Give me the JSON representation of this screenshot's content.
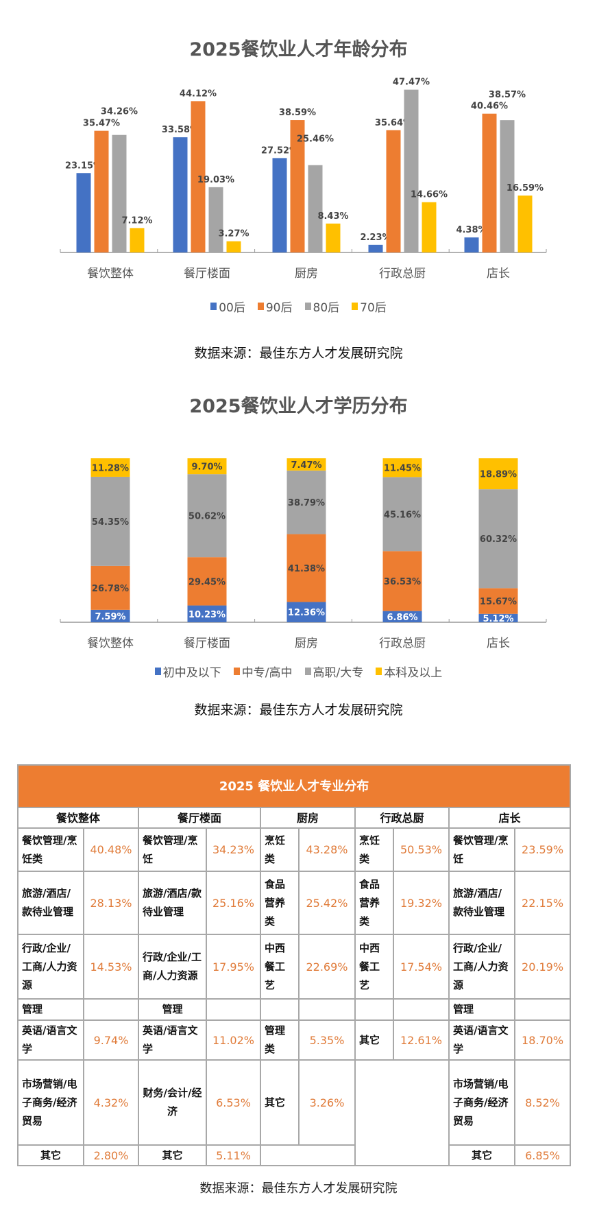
{
  "chart_data": [
    {
      "type": "bar",
      "title": "2025餐饮业人才年龄分布",
      "categories": [
        "餐饮整体",
        "餐厅楼面",
        "厨房",
        "行政总厨",
        "店长"
      ],
      "series": [
        {
          "name": "00后",
          "color": "#4472c4",
          "values": [
            23.15,
            33.58,
            27.52,
            2.23,
            4.38
          ]
        },
        {
          "name": "90后",
          "color": "#ed7d31",
          "values": [
            35.47,
            44.12,
            38.59,
            35.64,
            40.46
          ]
        },
        {
          "name": "80后",
          "color": "#a5a5a5",
          "values": [
            34.26,
            19.03,
            25.46,
            47.47,
            38.57
          ]
        },
        {
          "name": "70后",
          "color": "#ffc000",
          "values": [
            7.12,
            3.27,
            8.43,
            14.66,
            16.59
          ]
        }
      ],
      "value_suffix": "%",
      "legend": "bottom",
      "grid": false
    },
    {
      "type": "bar",
      "stacked": true,
      "title": "2025餐饮业人才学历分布",
      "categories": [
        "餐饮整体",
        "餐厅楼面",
        "厨房",
        "行政总厨",
        "店长"
      ],
      "series": [
        {
          "name": "初中及以下",
          "color": "#4472c4",
          "values": [
            7.59,
            10.23,
            12.36,
            6.86,
            5.12
          ]
        },
        {
          "name": "中专/高中",
          "color": "#ed7d31",
          "values": [
            26.78,
            29.45,
            41.38,
            36.53,
            15.67
          ]
        },
        {
          "name": "高职/大专",
          "color": "#a5a5a5",
          "values": [
            54.35,
            50.62,
            38.79,
            45.16,
            60.32
          ]
        },
        {
          "name": "本科及以上",
          "color": "#ffc000",
          "values": [
            11.28,
            9.7,
            7.47,
            11.45,
            18.89
          ]
        }
      ],
      "value_suffix": "%",
      "legend": "bottom",
      "grid": false
    }
  ],
  "source_text": "数据来源：最佳东方人才发展研究院",
  "table": {
    "title": "2025 餐饮业人才专业分布",
    "columns": [
      "餐饮整体",
      "餐厅楼面",
      "厨房",
      "行政总厨",
      "店长"
    ],
    "cells": {
      "r1": [
        "餐饮管理/烹饪类",
        "40.48%",
        "餐饮管理/烹饪",
        "34.23%",
        "烹饪类",
        "43.28%",
        "烹饪类",
        "50.53%",
        "餐饮管理/烹饪",
        "23.59%"
      ],
      "r2": [
        "旅游/酒店/款待业管理",
        "28.13%",
        "旅游/酒店/款待业管理",
        "25.16%",
        "食品营养类",
        "25.42%",
        "食品营养类",
        "19.32%",
        "旅游/酒店/款待业管理",
        "22.15%"
      ],
      "r3": [
        "行政/企业/工商/人力资源",
        "14.53%",
        "行政/企业/工商/人力资源",
        "17.95%",
        "中西餐工艺",
        "22.69%",
        "中西餐工艺",
        "17.54%",
        "行政/企业/工商/人力资源",
        "20.19%"
      ],
      "r4": [
        "管理",
        "管理",
        "管理"
      ],
      "r5": [
        "英语/语言文学",
        "9.74%",
        "英语/语言文学",
        "11.02%",
        "管理类",
        "5.35%",
        "其它",
        "12.61%",
        "英语/语言文学",
        "18.70%"
      ],
      "r6": [
        "市场营销/电子商务/经济贸易",
        "4.32%",
        "财务/会计/经济",
        "6.53%",
        "其它",
        "3.26%",
        "市场营销/电子商务/经济贸易",
        "8.52%"
      ],
      "r7": [
        "其它",
        "2.80%",
        "其它",
        "5.11%",
        "其它",
        "6.85%"
      ]
    }
  }
}
